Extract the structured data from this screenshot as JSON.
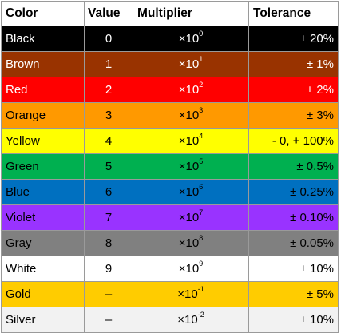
{
  "headers": [
    "Color",
    "Value",
    "Multiplier",
    "Tolerance"
  ],
  "rows": [
    {
      "color": "Black",
      "value": "0",
      "base": "×10",
      "exp": "0",
      "tolerance": "± 20%",
      "bg": "#000000",
      "fg": "#ffffff"
    },
    {
      "color": "Brown",
      "value": "1",
      "base": "×10",
      "exp": "1",
      "tolerance": "± 1%",
      "bg": "#993300",
      "fg": "#ffffff"
    },
    {
      "color": "Red",
      "value": "2",
      "base": "×10",
      "exp": "2",
      "tolerance": "± 2%",
      "bg": "#ff0000",
      "fg": "#ffffff"
    },
    {
      "color": "Orange",
      "value": "3",
      "base": "×10",
      "exp": "3",
      "tolerance": "± 3%",
      "bg": "#ff9900",
      "fg": "#000000"
    },
    {
      "color": "Yellow",
      "value": "4",
      "base": "×10",
      "exp": "4",
      "tolerance": "- 0, + 100%",
      "bg": "#ffff00",
      "fg": "#000000"
    },
    {
      "color": "Green",
      "value": "5",
      "base": "×10",
      "exp": "5",
      "tolerance": "± 0.5%",
      "bg": "#00b050",
      "fg": "#000000"
    },
    {
      "color": "Blue",
      "value": "6",
      "base": "×10",
      "exp": "6",
      "tolerance": "± 0.25%",
      "bg": "#0070c0",
      "fg": "#000000"
    },
    {
      "color": "Violet",
      "value": "7",
      "base": "×10",
      "exp": "7",
      "tolerance": "± 0.10%",
      "bg": "#9933ff",
      "fg": "#000000"
    },
    {
      "color": "Gray",
      "value": "8",
      "base": "×10",
      "exp": "8",
      "tolerance": "± 0.05%",
      "bg": "#808080",
      "fg": "#000000"
    },
    {
      "color": "White",
      "value": "9",
      "base": "×10",
      "exp": "9",
      "tolerance": "± 10%",
      "bg": "#ffffff",
      "fg": "#000000"
    },
    {
      "color": "Gold",
      "value": "–",
      "base": "×10",
      "exp": "-1",
      "tolerance": "± 5%",
      "bg": "#ffcc00",
      "fg": "#000000"
    },
    {
      "color": "Silver",
      "value": "–",
      "base": "×10",
      "exp": "-2",
      "tolerance": "± 10%",
      "bg": "#f2f2f2",
      "fg": "#000000"
    }
  ]
}
